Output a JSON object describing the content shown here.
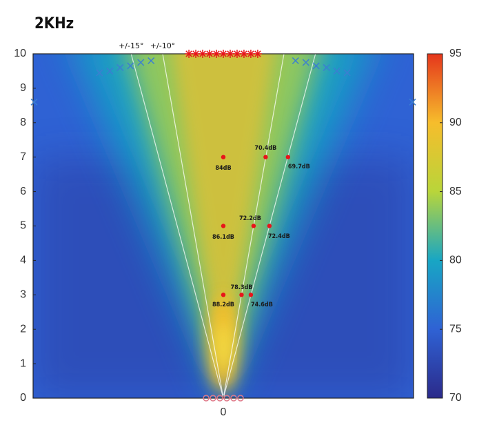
{
  "chart_data": {
    "type": "heatmap",
    "title": "2KHz",
    "xlim": [
      -5.53,
      5.53
    ],
    "xticks": [
      0
    ],
    "ylim": [
      0,
      10
    ],
    "yticks": [
      0,
      1,
      2,
      3,
      4,
      5,
      6,
      7,
      8,
      9,
      10
    ],
    "colorbar": {
      "lim": [
        70,
        95
      ],
      "ticks": [
        70,
        75,
        80,
        85,
        90,
        95
      ],
      "colors": [
        "#2b2a8a",
        "#2f62d4",
        "#18a6c4",
        "#b9d53a",
        "#f6bd2c",
        "#e5361c"
      ]
    },
    "guide_lines": [
      {
        "angle": 15,
        "label": "+/-15°"
      },
      {
        "angle": 10,
        "label": "+/-10°"
      }
    ],
    "points": {
      "color": "#e8141a",
      "x": [
        0,
        1.23,
        1.88,
        0,
        0.88,
        1.34,
        0,
        0.53,
        0.8
      ],
      "y": [
        7,
        7,
        7,
        5,
        5,
        5,
        3,
        3,
        3
      ],
      "values": [
        84,
        70.4,
        69.7,
        86.1,
        72.2,
        72.4,
        88.2,
        78.3,
        74.6
      ],
      "value_labels": [
        "84dB",
        "70.4dB",
        "69.7dB",
        "86.1dB",
        "72.2dB",
        "72.4dB",
        "88.2dB",
        "78.3dB",
        "74.6dB"
      ]
    },
    "markers": [
      {
        "symbol": "asterisk",
        "color": "#e8141a",
        "x": [
          -1,
          -0.8,
          -0.6,
          -0.4,
          -0.2,
          0,
          0.2,
          0.4,
          0.6,
          0.8,
          1
        ],
        "y": [
          10,
          10,
          10,
          10,
          10,
          10,
          10,
          10,
          10,
          10,
          10
        ]
      },
      {
        "symbol": "cross",
        "color": "#3b7fd1",
        "x": [
          -3.6,
          -3.3,
          -3,
          -2.7,
          -2.4,
          -2.1,
          2.1,
          2.4,
          2.7,
          3,
          3.3,
          3.6,
          -5.5,
          5.5
        ],
        "y": [
          9.45,
          9.5,
          9.6,
          9.65,
          9.75,
          9.8,
          9.8,
          9.75,
          9.65,
          9.6,
          9.5,
          9.45,
          8.6,
          8.6
        ]
      },
      {
        "symbol": "circle",
        "color": "#e07a8a",
        "x": [
          -0.5,
          -0.3,
          -0.1,
          0.1,
          0.3,
          0.5
        ],
        "y": [
          0,
          0,
          0,
          0,
          0,
          0
        ]
      }
    ]
  }
}
